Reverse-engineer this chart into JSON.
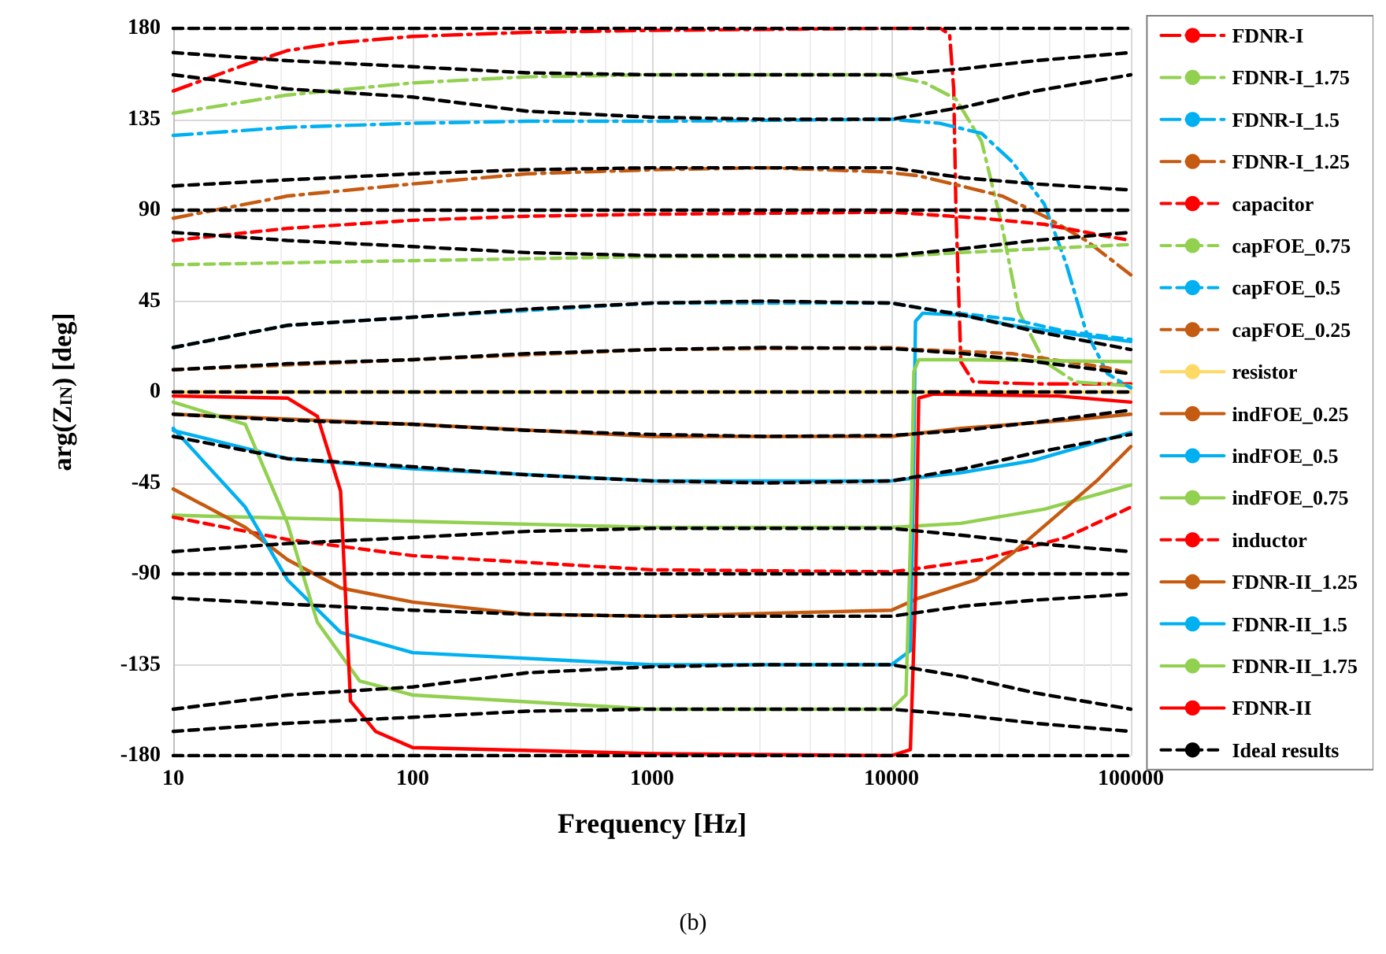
{
  "chart_data": {
    "type": "line",
    "xlabel": "Frequency [Hz]",
    "ylabel": "arg(Z$_{IN}$) [deg]",
    "log": "x",
    "xlim": [
      10,
      100000
    ],
    "xticks": [
      10,
      100,
      1000,
      10000,
      100000
    ],
    "ylim": [
      -180,
      180
    ],
    "yticks": [
      -180,
      -135,
      -90,
      -45,
      0,
      45,
      90,
      135,
      180
    ],
    "grid": true,
    "legend": "right",
    "marker": "none",
    "annotations": [
      "(b)"
    ],
    "series": [
      {
        "name": "FDNR-I",
        "color": "#ff0000",
        "line_style": "dashdot",
        "x": [
          10,
          20,
          30,
          50,
          100,
          300,
          1000,
          10000,
          16000,
          17500,
          18200,
          18600,
          19500,
          22000,
          40000,
          100000
        ],
        "values": [
          149,
          162,
          169,
          173,
          176,
          178,
          179,
          180,
          180,
          177,
          150,
          90,
          15,
          5,
          4,
          4
        ]
      },
      {
        "name": "FDNR-I_1.75",
        "color": "#92d050",
        "line_style": "dashdot",
        "x": [
          10,
          30,
          100,
          300,
          1000,
          9600,
          13800,
          18600,
          23800,
          29000,
          34000,
          43500,
          58600,
          100000
        ],
        "values": [
          138,
          147,
          153,
          156,
          157,
          157,
          153,
          145,
          124,
          82,
          40,
          15,
          5,
          3
        ]
      },
      {
        "name": "FDNR-I_1.5",
        "color": "#00b0f0",
        "line_style": "dashdot",
        "x": [
          10,
          30,
          100,
          300,
          1000,
          10000,
          15900,
          23800,
          31900,
          43500,
          53500,
          65000,
          80000,
          100000
        ],
        "values": [
          127,
          131,
          133,
          134,
          134,
          135,
          133,
          128,
          114,
          93,
          64,
          30,
          9,
          2
        ]
      },
      {
        "name": "FDNR-I_1.25",
        "color": "#c55a11",
        "line_style": "dashdot",
        "x": [
          10,
          30,
          100,
          300,
          1000,
          3000,
          9100,
          13000,
          19500,
          29000,
          43500,
          65000,
          100000
        ],
        "values": [
          86,
          97,
          103,
          108,
          110,
          111,
          109,
          107,
          102,
          97,
          87,
          75,
          58
        ]
      },
      {
        "name": "capacitor",
        "color": "#ff0000",
        "line_style": "dashed",
        "x": [
          10,
          30,
          100,
          300,
          1000,
          10000,
          23800,
          43500,
          80000,
          100000
        ],
        "values": [
          75,
          81,
          85,
          87,
          88,
          89,
          86,
          83,
          77,
          75
        ]
      },
      {
        "name": "capFOE_0.75",
        "color": "#92d050",
        "line_style": "dashed",
        "x": [
          10,
          100,
          1000,
          10000,
          19500,
          43500,
          100000
        ],
        "values": [
          63,
          65,
          67,
          67,
          69,
          71,
          73
        ]
      },
      {
        "name": "capFOE_0.5",
        "color": "#00b0f0",
        "line_style": "dashed",
        "x": [
          10,
          30,
          100,
          1000,
          10000,
          15900,
          31900,
          53500,
          100000
        ],
        "values": [
          22,
          33,
          37,
          44,
          44,
          40,
          36,
          30,
          26
        ]
      },
      {
        "name": "capFOE_0.25",
        "color": "#c55a11",
        "line_style": "dashed",
        "x": [
          10,
          100,
          1000,
          10000,
          13000,
          31900,
          80000,
          100000
        ],
        "values": [
          11,
          16,
          21,
          22,
          21,
          19,
          12,
          9
        ]
      },
      {
        "name": "resistor",
        "color": "#ffd966",
        "line_style": "solid",
        "x": [
          10,
          100000
        ],
        "values": [
          0,
          0
        ]
      },
      {
        "name": "indFOE_0.25",
        "color": "#c55a11",
        "line_style": "solid",
        "x": [
          10,
          100,
          1000,
          10000,
          19500,
          53500,
          100000
        ],
        "values": [
          -11,
          -16,
          -22,
          -22,
          -18,
          -14,
          -11
        ]
      },
      {
        "name": "indFOE_0.5",
        "color": "#00b0f0",
        "line_style": "solid",
        "x": [
          10,
          30,
          100,
          1000,
          10000,
          19500,
          38800,
          100000
        ],
        "values": [
          -19,
          -33,
          -38,
          -44,
          -44,
          -40,
          -34,
          -20
        ]
      },
      {
        "name": "indFOE_0.75",
        "color": "#92d050",
        "line_style": "solid",
        "x": [
          10,
          100,
          1000,
          10000,
          19500,
          43500,
          100000
        ],
        "values": [
          -61,
          -64,
          -67,
          -67,
          -65,
          -58,
          -46
        ]
      },
      {
        "name": "inductor",
        "color": "#ff0000",
        "line_style": "dashed",
        "x": [
          10,
          30,
          100,
          1000,
          10000,
          11800,
          23800,
          53500,
          100000
        ],
        "values": [
          -62,
          -73,
          -81,
          -88,
          -89,
          -88,
          -83,
          -72,
          -57
        ]
      },
      {
        "name": "FDNR-II_1.25",
        "color": "#c55a11",
        "line_style": "solid",
        "x": [
          10,
          20,
          30,
          50,
          100,
          300,
          1000,
          10000,
          13000,
          22500,
          31900,
          48000,
          72000,
          100000
        ],
        "values": [
          -48,
          -67,
          -83,
          -97,
          -104,
          -110,
          -111,
          -108,
          -102,
          -93,
          -80,
          -62,
          -44,
          -27
        ]
      },
      {
        "name": "FDNR-II_1.5",
        "color": "#00b0f0",
        "line_style": "solid",
        "x": [
          10,
          20,
          30,
          50,
          100,
          1000,
          10000,
          12000,
          12300,
          12600,
          13500,
          20000,
          31900,
          53500,
          100000
        ],
        "values": [
          -18,
          -57,
          -93,
          -119,
          -129,
          -135,
          -135,
          -128,
          -60,
          35,
          39,
          38,
          33,
          29,
          25
        ]
      },
      {
        "name": "FDNR-II_1.75",
        "color": "#92d050",
        "line_style": "solid",
        "x": [
          10,
          20,
          30,
          40,
          60,
          100,
          1000,
          10000,
          11500,
          12100,
          12400,
          13000,
          20000,
          100000
        ],
        "values": [
          -5,
          -16,
          -65,
          -114,
          -143,
          -150,
          -157,
          -157,
          -150,
          -60,
          10,
          16,
          16,
          15
        ]
      },
      {
        "name": "FDNR-II",
        "color": "#ff0000",
        "line_style": "solid",
        "x": [
          10,
          30,
          40,
          50,
          55,
          70,
          100,
          1000,
          10000,
          12000,
          12600,
          13000,
          15000,
          50000,
          100000
        ],
        "values": [
          -2,
          -3,
          -12,
          -49,
          -153,
          -168,
          -176,
          -179,
          -180,
          -177,
          -100,
          -3,
          -1,
          -2,
          -5
        ]
      },
      {
        "name": "Ideal results",
        "color": "#000000",
        "line_style": "dashed",
        "x": [
          10,
          100000
        ],
        "values": [
          180,
          180
        ]
      },
      {
        "color": "#000000",
        "line_style": "dashed",
        "x": [
          10,
          30,
          100,
          300,
          1000,
          3000,
          10000,
          20000,
          40000,
          100000
        ],
        "values": [
          168,
          164,
          161,
          158,
          157,
          157,
          157,
          160,
          164,
          168
        ]
      },
      {
        "color": "#000000",
        "line_style": "dashed",
        "x": [
          10,
          30,
          100,
          300,
          1000,
          3000,
          10000,
          20000,
          40000,
          100000
        ],
        "values": [
          157,
          150,
          146,
          139,
          136,
          135,
          135,
          141,
          149,
          157
        ]
      },
      {
        "color": "#000000",
        "line_style": "dashed",
        "x": [
          10,
          30,
          100,
          300,
          1000,
          3000,
          10000,
          20000,
          40000,
          100000
        ],
        "values": [
          102,
          105,
          108,
          110,
          111,
          111,
          111,
          106,
          103,
          100
        ]
      },
      {
        "color": "#000000",
        "line_style": "dashed",
        "x": [
          10,
          100000
        ],
        "values": [
          90,
          90
        ]
      },
      {
        "color": "#000000",
        "line_style": "dashed",
        "x": [
          10,
          30,
          100,
          300,
          1000,
          3000,
          10000,
          20000,
          40000,
          100000
        ],
        "values": [
          79,
          75,
          72,
          69,
          67.5,
          67.5,
          67.5,
          71,
          75,
          79
        ]
      },
      {
        "color": "#000000",
        "line_style": "dashed",
        "x": [
          10,
          30,
          100,
          300,
          1000,
          3000,
          10000,
          20000,
          40000,
          100000
        ],
        "values": [
          22,
          33,
          37,
          41,
          44,
          45,
          44,
          38,
          30,
          21
        ]
      },
      {
        "color": "#000000",
        "line_style": "dashed",
        "x": [
          10,
          30,
          100,
          300,
          1000,
          3000,
          10000,
          20000,
          40000,
          100000
        ],
        "values": [
          11,
          14,
          16,
          19,
          21,
          22,
          21.5,
          19,
          15,
          9
        ]
      },
      {
        "color": "#000000",
        "line_style": "dashed",
        "x": [
          10,
          100000
        ],
        "values": [
          0,
          0
        ]
      },
      {
        "color": "#000000",
        "line_style": "dashed",
        "x": [
          10,
          30,
          100,
          300,
          1000,
          3000,
          10000,
          20000,
          40000,
          100000
        ],
        "values": [
          -11,
          -14,
          -16,
          -19,
          -21,
          -22,
          -21.5,
          -19,
          -15,
          -9
        ]
      },
      {
        "color": "#000000",
        "line_style": "dashed",
        "x": [
          10,
          30,
          100,
          300,
          1000,
          3000,
          10000,
          20000,
          40000,
          100000
        ],
        "values": [
          -22,
          -33,
          -37,
          -41,
          -44,
          -45,
          -44,
          -38,
          -30,
          -21
        ]
      },
      {
        "color": "#000000",
        "line_style": "dashed",
        "x": [
          10,
          30,
          100,
          300,
          1000,
          3000,
          10000,
          20000,
          40000,
          100000
        ],
        "values": [
          -79,
          -75,
          -72,
          -69,
          -67.5,
          -67.5,
          -67.5,
          -71,
          -75,
          -79
        ]
      },
      {
        "color": "#000000",
        "line_style": "dashed",
        "x": [
          10,
          100000
        ],
        "values": [
          -90,
          -90
        ]
      },
      {
        "color": "#000000",
        "line_style": "dashed",
        "x": [
          10,
          30,
          100,
          300,
          1000,
          3000,
          10000,
          20000,
          40000,
          100000
        ],
        "values": [
          -102,
          -105,
          -108,
          -110,
          -111,
          -111,
          -111,
          -106,
          -103,
          -100
        ]
      },
      {
        "color": "#000000",
        "line_style": "dashed",
        "x": [
          10,
          30,
          100,
          300,
          1000,
          3000,
          10000,
          20000,
          40000,
          100000
        ],
        "values": [
          -157,
          -150,
          -146,
          -139,
          -136,
          -135,
          -135,
          -141,
          -149,
          -157
        ]
      },
      {
        "color": "#000000",
        "line_style": "dashed",
        "x": [
          10,
          30,
          100,
          300,
          1000,
          3000,
          10000,
          20000,
          40000,
          100000
        ],
        "values": [
          -168,
          -164,
          -161,
          -158,
          -157,
          -157,
          -157,
          -160,
          -164,
          -168
        ]
      },
      {
        "color": "#000000",
        "line_style": "dashed",
        "x": [
          10,
          100000
        ],
        "values": [
          -180,
          -180
        ]
      }
    ]
  }
}
